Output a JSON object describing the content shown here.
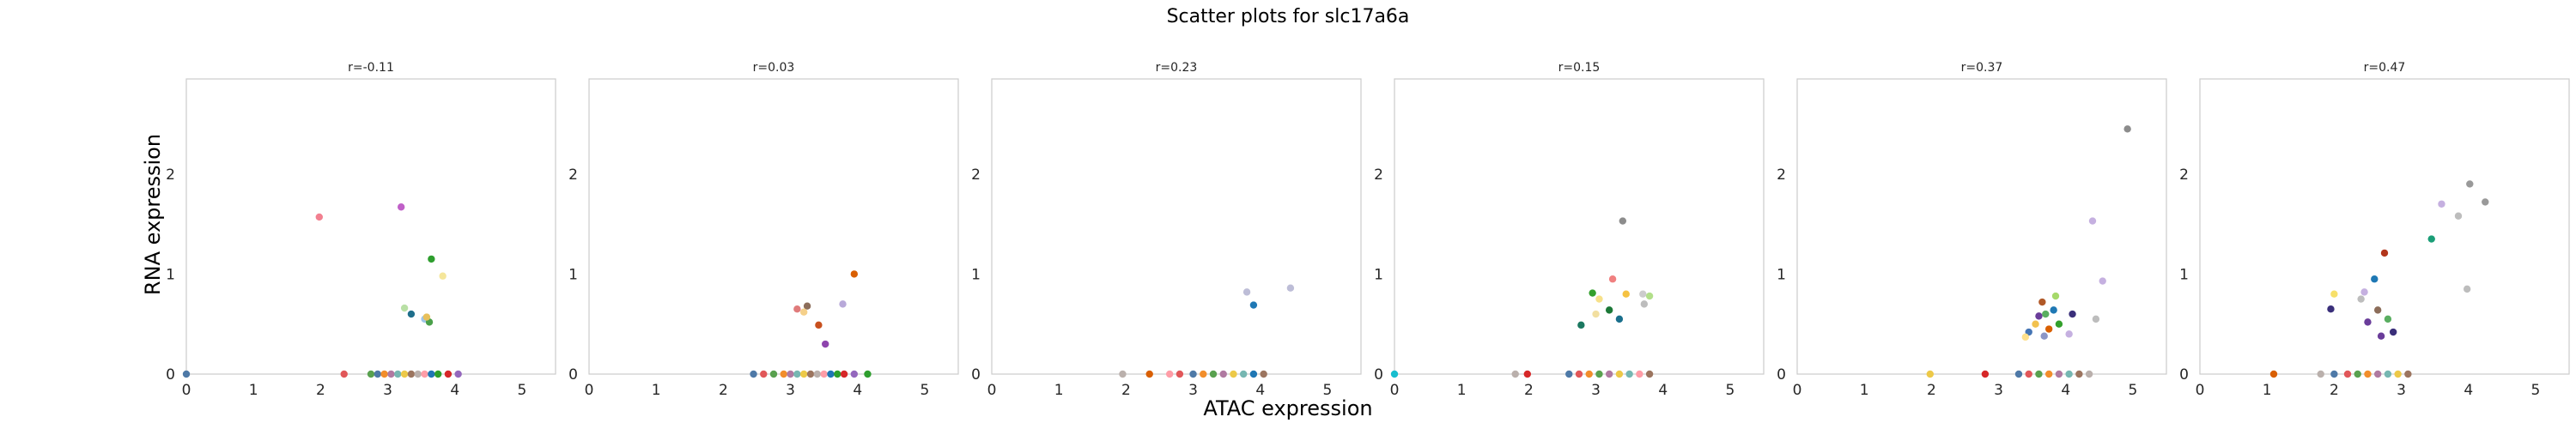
{
  "chart_data": {
    "type": "scatter",
    "title": "Scatter plots for slc17a6a",
    "xlabel": "ATAC expression",
    "ylabel": "RNA expression",
    "xlim": [
      0,
      5.5
    ],
    "ylim": [
      0,
      2.95
    ],
    "xticks": [
      "0",
      "1",
      "2",
      "3",
      "4",
      "5"
    ],
    "yticks": [
      "0",
      "1",
      "2"
    ],
    "grid": false,
    "panels": [
      {
        "title": "r=-0.11",
        "points": [
          {
            "x": 0.0,
            "y": 0.0,
            "color": "#4e79a7"
          },
          {
            "x": 2.35,
            "y": 0.0,
            "color": "#e15759"
          },
          {
            "x": 2.75,
            "y": 0.0,
            "color": "#59a14f"
          },
          {
            "x": 2.85,
            "y": 0.0,
            "color": "#4e79a7"
          },
          {
            "x": 2.95,
            "y": 0.0,
            "color": "#f28e2b"
          },
          {
            "x": 3.05,
            "y": 0.0,
            "color": "#b07aa1"
          },
          {
            "x": 3.15,
            "y": 0.0,
            "color": "#76b7b2"
          },
          {
            "x": 3.25,
            "y": 0.0,
            "color": "#edc948"
          },
          {
            "x": 3.35,
            "y": 0.0,
            "color": "#9c755f"
          },
          {
            "x": 3.45,
            "y": 0.0,
            "color": "#bab0ac"
          },
          {
            "x": 3.55,
            "y": 0.0,
            "color": "#ff9da7"
          },
          {
            "x": 3.65,
            "y": 0.0,
            "color": "#1f77b4"
          },
          {
            "x": 3.75,
            "y": 0.0,
            "color": "#2ca02c"
          },
          {
            "x": 3.9,
            "y": 0.0,
            "color": "#d62728"
          },
          {
            "x": 4.05,
            "y": 0.0,
            "color": "#9467bd"
          },
          {
            "x": 1.98,
            "y": 1.57,
            "color": "#f28090"
          },
          {
            "x": 3.2,
            "y": 1.67,
            "color": "#c060c8"
          },
          {
            "x": 3.65,
            "y": 1.15,
            "color": "#2e9e2e"
          },
          {
            "x": 3.82,
            "y": 0.98,
            "color": "#f5e69a"
          },
          {
            "x": 3.25,
            "y": 0.66,
            "color": "#b9e0a5"
          },
          {
            "x": 3.35,
            "y": 0.6,
            "color": "#1f6f8b"
          },
          {
            "x": 3.55,
            "y": 0.55,
            "color": "#9fc5e8"
          },
          {
            "x": 3.62,
            "y": 0.52,
            "color": "#4aa04a"
          },
          {
            "x": 3.58,
            "y": 0.57,
            "color": "#e8c05a"
          }
        ]
      },
      {
        "title": "r=0.03",
        "points": [
          {
            "x": 2.45,
            "y": 0.0,
            "color": "#4e79a7"
          },
          {
            "x": 2.6,
            "y": 0.0,
            "color": "#e15759"
          },
          {
            "x": 2.75,
            "y": 0.0,
            "color": "#59a14f"
          },
          {
            "x": 2.9,
            "y": 0.0,
            "color": "#f28e2b"
          },
          {
            "x": 3.0,
            "y": 0.0,
            "color": "#b07aa1"
          },
          {
            "x": 3.1,
            "y": 0.0,
            "color": "#76b7b2"
          },
          {
            "x": 3.2,
            "y": 0.0,
            "color": "#edc948"
          },
          {
            "x": 3.3,
            "y": 0.0,
            "color": "#9c755f"
          },
          {
            "x": 3.4,
            "y": 0.0,
            "color": "#bab0ac"
          },
          {
            "x": 3.5,
            "y": 0.0,
            "color": "#ff9da7"
          },
          {
            "x": 3.6,
            "y": 0.0,
            "color": "#1f77b4"
          },
          {
            "x": 3.7,
            "y": 0.0,
            "color": "#2ca02c"
          },
          {
            "x": 3.8,
            "y": 0.0,
            "color": "#d62728"
          },
          {
            "x": 3.95,
            "y": 0.0,
            "color": "#9467bd"
          },
          {
            "x": 4.15,
            "y": 0.0,
            "color": "#2e9e2e"
          },
          {
            "x": 3.95,
            "y": 1.0,
            "color": "#d95f02"
          },
          {
            "x": 3.78,
            "y": 0.7,
            "color": "#b8a9d9"
          },
          {
            "x": 3.1,
            "y": 0.65,
            "color": "#e07b7b"
          },
          {
            "x": 3.25,
            "y": 0.68,
            "color": "#8c6d5a"
          },
          {
            "x": 3.2,
            "y": 0.62,
            "color": "#f5d08a"
          },
          {
            "x": 3.42,
            "y": 0.49,
            "color": "#c8501e"
          },
          {
            "x": 3.52,
            "y": 0.3,
            "color": "#8e44ad"
          }
        ]
      },
      {
        "title": "r=0.23",
        "points": [
          {
            "x": 1.95,
            "y": 0.0,
            "color": "#bab0ac"
          },
          {
            "x": 2.35,
            "y": 0.0,
            "color": "#d95f02"
          },
          {
            "x": 2.65,
            "y": 0.0,
            "color": "#ff9da7"
          },
          {
            "x": 2.8,
            "y": 0.0,
            "color": "#e15759"
          },
          {
            "x": 3.0,
            "y": 0.0,
            "color": "#4e79a7"
          },
          {
            "x": 3.15,
            "y": 0.0,
            "color": "#f28e2b"
          },
          {
            "x": 3.3,
            "y": 0.0,
            "color": "#59a14f"
          },
          {
            "x": 3.45,
            "y": 0.0,
            "color": "#b07aa1"
          },
          {
            "x": 3.6,
            "y": 0.0,
            "color": "#edc948"
          },
          {
            "x": 3.75,
            "y": 0.0,
            "color": "#76b7b2"
          },
          {
            "x": 3.9,
            "y": 0.0,
            "color": "#1f77b4"
          },
          {
            "x": 4.05,
            "y": 0.0,
            "color": "#9c755f"
          },
          {
            "x": 3.8,
            "y": 0.82,
            "color": "#bdbdd7"
          },
          {
            "x": 3.9,
            "y": 0.69,
            "color": "#1f78b4"
          },
          {
            "x": 4.45,
            "y": 0.86,
            "color": "#bdbdd7"
          }
        ]
      },
      {
        "title": "r=0.15",
        "points": [
          {
            "x": 0.0,
            "y": 0.0,
            "color": "#17becf"
          },
          {
            "x": 1.8,
            "y": 0.0,
            "color": "#bab0ac"
          },
          {
            "x": 1.98,
            "y": 0.0,
            "color": "#d62728"
          },
          {
            "x": 2.6,
            "y": 0.0,
            "color": "#4e79a7"
          },
          {
            "x": 2.75,
            "y": 0.0,
            "color": "#e15759"
          },
          {
            "x": 2.9,
            "y": 0.0,
            "color": "#f28e2b"
          },
          {
            "x": 3.05,
            "y": 0.0,
            "color": "#59a14f"
          },
          {
            "x": 3.2,
            "y": 0.0,
            "color": "#b07aa1"
          },
          {
            "x": 3.35,
            "y": 0.0,
            "color": "#edc948"
          },
          {
            "x": 3.5,
            "y": 0.0,
            "color": "#76b7b2"
          },
          {
            "x": 3.65,
            "y": 0.0,
            "color": "#ff9da7"
          },
          {
            "x": 3.8,
            "y": 0.0,
            "color": "#9c755f"
          },
          {
            "x": 3.4,
            "y": 1.53,
            "color": "#8c8c8c"
          },
          {
            "x": 3.25,
            "y": 0.95,
            "color": "#f08080"
          },
          {
            "x": 2.95,
            "y": 0.81,
            "color": "#33a02c"
          },
          {
            "x": 3.05,
            "y": 0.75,
            "color": "#f7e18a"
          },
          {
            "x": 3.45,
            "y": 0.8,
            "color": "#f5c242"
          },
          {
            "x": 3.7,
            "y": 0.8,
            "color": "#cccccc"
          },
          {
            "x": 3.8,
            "y": 0.78,
            "color": "#b2df8a"
          },
          {
            "x": 3.2,
            "y": 0.64,
            "color": "#1b7837"
          },
          {
            "x": 3.72,
            "y": 0.7,
            "color": "#bdbdbd"
          },
          {
            "x": 3.0,
            "y": 0.6,
            "color": "#f2dfa0"
          },
          {
            "x": 3.35,
            "y": 0.55,
            "color": "#1a6f8c"
          },
          {
            "x": 2.78,
            "y": 0.49,
            "color": "#1b7860"
          }
        ]
      },
      {
        "title": "r=0.37",
        "points": [
          {
            "x": 1.98,
            "y": 0.0,
            "color": "#edc948"
          },
          {
            "x": 2.8,
            "y": 0.0,
            "color": "#d62728"
          },
          {
            "x": 3.3,
            "y": 0.0,
            "color": "#4e79a7"
          },
          {
            "x": 3.45,
            "y": 0.0,
            "color": "#e15759"
          },
          {
            "x": 3.6,
            "y": 0.0,
            "color": "#59a14f"
          },
          {
            "x": 3.75,
            "y": 0.0,
            "color": "#f28e2b"
          },
          {
            "x": 3.9,
            "y": 0.0,
            "color": "#b07aa1"
          },
          {
            "x": 4.05,
            "y": 0.0,
            "color": "#76b7b2"
          },
          {
            "x": 4.2,
            "y": 0.0,
            "color": "#9c755f"
          },
          {
            "x": 4.35,
            "y": 0.0,
            "color": "#bab0ac"
          },
          {
            "x": 4.92,
            "y": 2.45,
            "color": "#8c8c8c"
          },
          {
            "x": 4.4,
            "y": 1.53,
            "color": "#c5b0e0"
          },
          {
            "x": 4.55,
            "y": 0.93,
            "color": "#c5b0e0"
          },
          {
            "x": 3.85,
            "y": 0.78,
            "color": "#a6d96a"
          },
          {
            "x": 3.65,
            "y": 0.72,
            "color": "#b15928"
          },
          {
            "x": 3.82,
            "y": 0.64,
            "color": "#1f78b4"
          },
          {
            "x": 3.7,
            "y": 0.6,
            "color": "#5aae61"
          },
          {
            "x": 3.6,
            "y": 0.58,
            "color": "#6a3d9a"
          },
          {
            "x": 4.1,
            "y": 0.6,
            "color": "#3a2f7a"
          },
          {
            "x": 4.45,
            "y": 0.55,
            "color": "#bdbdbd"
          },
          {
            "x": 3.9,
            "y": 0.5,
            "color": "#33a02c"
          },
          {
            "x": 3.55,
            "y": 0.5,
            "color": "#f2c14e"
          },
          {
            "x": 3.45,
            "y": 0.42,
            "color": "#4575b4"
          },
          {
            "x": 3.75,
            "y": 0.45,
            "color": "#d95f02"
          },
          {
            "x": 4.05,
            "y": 0.4,
            "color": "#c5b0e0"
          },
          {
            "x": 3.68,
            "y": 0.38,
            "color": "#8c96c6"
          },
          {
            "x": 3.4,
            "y": 0.37,
            "color": "#fee08b"
          }
        ]
      },
      {
        "title": "r=0.47",
        "points": [
          {
            "x": 1.1,
            "y": 0.0,
            "color": "#d95f02"
          },
          {
            "x": 1.8,
            "y": 0.0,
            "color": "#bab0ac"
          },
          {
            "x": 2.0,
            "y": 0.0,
            "color": "#4e79a7"
          },
          {
            "x": 2.2,
            "y": 0.0,
            "color": "#e15759"
          },
          {
            "x": 2.35,
            "y": 0.0,
            "color": "#59a14f"
          },
          {
            "x": 2.5,
            "y": 0.0,
            "color": "#f28e2b"
          },
          {
            "x": 2.65,
            "y": 0.0,
            "color": "#b07aa1"
          },
          {
            "x": 2.8,
            "y": 0.0,
            "color": "#76b7b2"
          },
          {
            "x": 2.95,
            "y": 0.0,
            "color": "#edc948"
          },
          {
            "x": 3.1,
            "y": 0.0,
            "color": "#9c755f"
          },
          {
            "x": 4.02,
            "y": 1.9,
            "color": "#999999"
          },
          {
            "x": 4.25,
            "y": 1.72,
            "color": "#999999"
          },
          {
            "x": 3.6,
            "y": 1.7,
            "color": "#c5b0e0"
          },
          {
            "x": 3.85,
            "y": 1.58,
            "color": "#bdbdbd"
          },
          {
            "x": 3.45,
            "y": 1.35,
            "color": "#1a9e77"
          },
          {
            "x": 2.75,
            "y": 1.21,
            "color": "#b2361c"
          },
          {
            "x": 2.6,
            "y": 0.95,
            "color": "#1f78b4"
          },
          {
            "x": 3.98,
            "y": 0.85,
            "color": "#bdbdbd"
          },
          {
            "x": 2.0,
            "y": 0.8,
            "color": "#f7e06a"
          },
          {
            "x": 2.45,
            "y": 0.82,
            "color": "#c5b0e0"
          },
          {
            "x": 2.4,
            "y": 0.75,
            "color": "#bdbdbd"
          },
          {
            "x": 1.95,
            "y": 0.65,
            "color": "#3a2f7a"
          },
          {
            "x": 2.65,
            "y": 0.64,
            "color": "#8c6d5a"
          },
          {
            "x": 2.8,
            "y": 0.55,
            "color": "#5aae61"
          },
          {
            "x": 2.5,
            "y": 0.52,
            "color": "#6a3d9a"
          },
          {
            "x": 2.88,
            "y": 0.42,
            "color": "#3a2f7a"
          },
          {
            "x": 2.7,
            "y": 0.38,
            "color": "#6a3d9a"
          }
        ]
      }
    ]
  }
}
